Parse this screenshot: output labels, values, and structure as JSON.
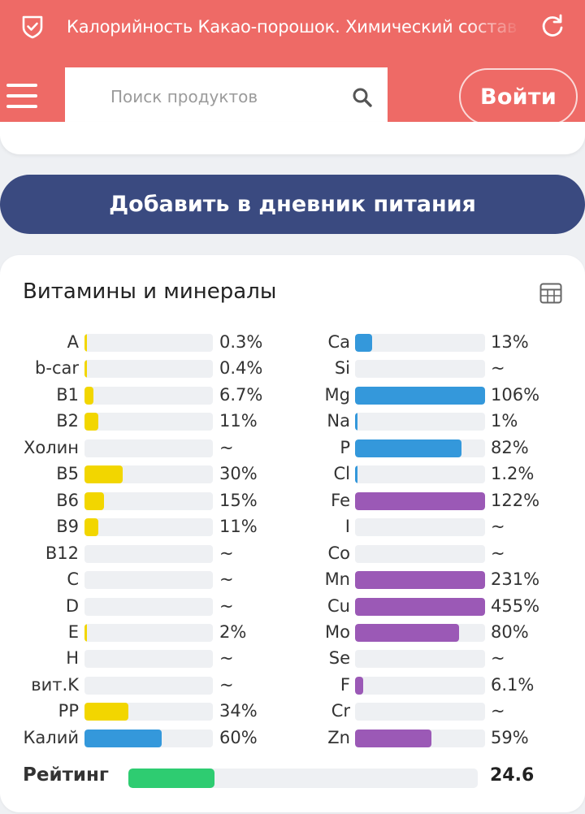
{
  "header": {
    "title": "Калорийность Какао-порошок. Химический состав",
    "search_placeholder": "Поиск продуктов",
    "login_label": "Войти",
    "icons": [
      "shield-check-icon",
      "refresh-icon",
      "menu-icon",
      "search-icon"
    ]
  },
  "add_button_label": "Добавить в дневник питания",
  "vitamins": {
    "title": "Витамины и минералы",
    "table_icon": "table-icon",
    "colors": {
      "yellow": "#f2d600",
      "blue": "#3498db",
      "purple": "#9b59b6",
      "green": "#2ecc71"
    },
    "left": [
      {
        "label": "A",
        "value": "0.3%",
        "pct": 0.3,
        "color": "yellow"
      },
      {
        "label": "b-car",
        "value": "0.4%",
        "pct": 0.4,
        "color": "yellow"
      },
      {
        "label": "B1",
        "value": "6.7%",
        "pct": 6.7,
        "color": "yellow"
      },
      {
        "label": "B2",
        "value": "11%",
        "pct": 11,
        "color": "yellow"
      },
      {
        "label": "Холин",
        "value": "~",
        "pct": 0,
        "color": "yellow"
      },
      {
        "label": "B5",
        "value": "30%",
        "pct": 30,
        "color": "yellow"
      },
      {
        "label": "B6",
        "value": "15%",
        "pct": 15,
        "color": "yellow"
      },
      {
        "label": "B9",
        "value": "11%",
        "pct": 11,
        "color": "yellow"
      },
      {
        "label": "B12",
        "value": "~",
        "pct": 0,
        "color": "yellow"
      },
      {
        "label": "C",
        "value": "~",
        "pct": 0,
        "color": "yellow"
      },
      {
        "label": "D",
        "value": "~",
        "pct": 0,
        "color": "yellow"
      },
      {
        "label": "E",
        "value": "2%",
        "pct": 2,
        "color": "yellow"
      },
      {
        "label": "H",
        "value": "~",
        "pct": 0,
        "color": "yellow"
      },
      {
        "label": "вит.K",
        "value": "~",
        "pct": 0,
        "color": "yellow"
      },
      {
        "label": "PP",
        "value": "34%",
        "pct": 34,
        "color": "yellow"
      },
      {
        "label": "Калий",
        "value": "60%",
        "pct": 60,
        "color": "blue"
      }
    ],
    "right": [
      {
        "label": "Ca",
        "value": "13%",
        "pct": 13,
        "color": "blue"
      },
      {
        "label": "Si",
        "value": "~",
        "pct": 0,
        "color": "blue"
      },
      {
        "label": "Mg",
        "value": "106%",
        "pct": 106,
        "color": "blue"
      },
      {
        "label": "Na",
        "value": "1%",
        "pct": 1,
        "color": "blue"
      },
      {
        "label": "P",
        "value": "82%",
        "pct": 82,
        "color": "blue"
      },
      {
        "label": "Cl",
        "value": "1.2%",
        "pct": 1.2,
        "color": "blue"
      },
      {
        "label": "Fe",
        "value": "122%",
        "pct": 122,
        "color": "purple"
      },
      {
        "label": "I",
        "value": "~",
        "pct": 0,
        "color": "purple"
      },
      {
        "label": "Co",
        "value": "~",
        "pct": 0,
        "color": "purple"
      },
      {
        "label": "Mn",
        "value": "231%",
        "pct": 231,
        "color": "purple"
      },
      {
        "label": "Cu",
        "value": "455%",
        "pct": 455,
        "color": "purple"
      },
      {
        "label": "Mo",
        "value": "80%",
        "pct": 80,
        "color": "purple"
      },
      {
        "label": "Se",
        "value": "~",
        "pct": 0,
        "color": "purple"
      },
      {
        "label": "F",
        "value": "6.1%",
        "pct": 6.1,
        "color": "purple"
      },
      {
        "label": "Cr",
        "value": "~",
        "pct": 0,
        "color": "purple"
      },
      {
        "label": "Zn",
        "value": "59%",
        "pct": 59,
        "color": "purple"
      }
    ],
    "rating": {
      "label": "Рейтинг",
      "value": "24.6",
      "fraction": 0.246
    }
  }
}
